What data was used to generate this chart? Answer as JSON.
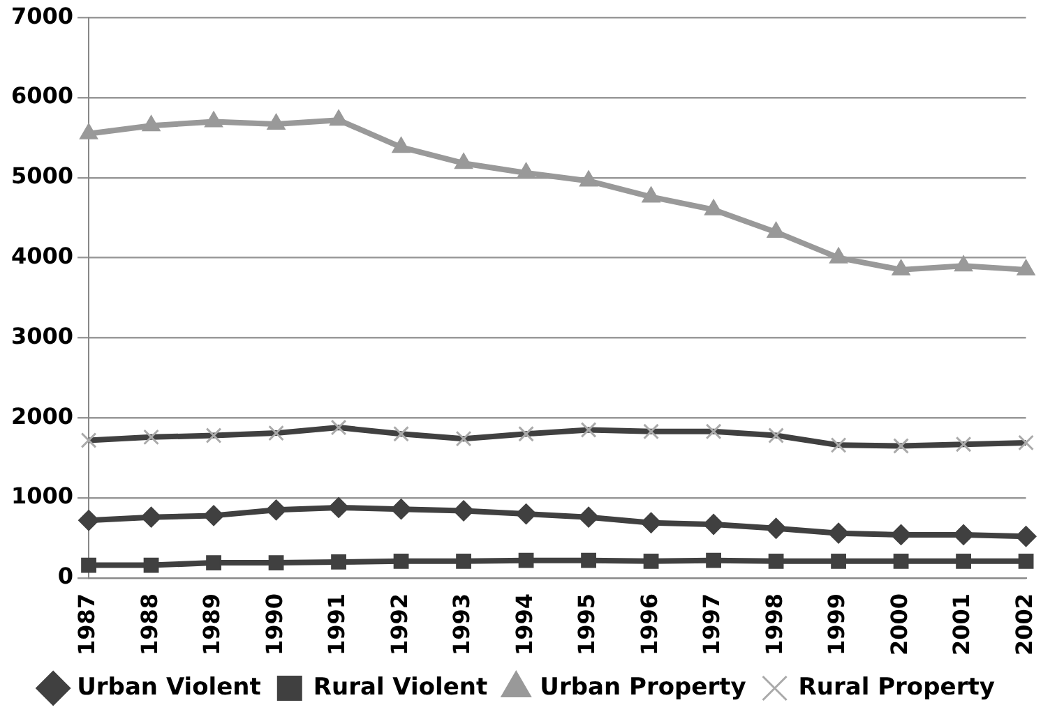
{
  "chart_data": {
    "type": "line",
    "categories": [
      "1987",
      "1988",
      "1989",
      "1990",
      "1991",
      "1992",
      "1993",
      "1994",
      "1995",
      "1996",
      "1997",
      "1998",
      "1999",
      "2000",
      "2001",
      "2002"
    ],
    "series": [
      {
        "name": "Urban Violent",
        "color": "#404040",
        "marker": "diamond",
        "values": [
          720,
          760,
          780,
          850,
          880,
          860,
          840,
          800,
          760,
          690,
          670,
          620,
          560,
          540,
          540,
          520
        ]
      },
      {
        "name": "Rural Violent",
        "color": "#404040",
        "marker": "square",
        "values": [
          160,
          160,
          190,
          190,
          200,
          210,
          210,
          220,
          220,
          210,
          220,
          210,
          210,
          210,
          210,
          210
        ]
      },
      {
        "name": "Urban Property",
        "color": "#999999",
        "marker": "triangle",
        "values": [
          5550,
          5650,
          5700,
          5670,
          5720,
          5380,
          5180,
          5060,
          4960,
          4760,
          4600,
          4320,
          4000,
          3850,
          3900,
          3850
        ]
      },
      {
        "name": "Rural Property",
        "color": "#404040",
        "marker": "cross",
        "values": [
          1720,
          1760,
          1780,
          1810,
          1880,
          1800,
          1740,
          1800,
          1850,
          1830,
          1830,
          1780,
          1660,
          1650,
          1670,
          1690
        ]
      }
    ],
    "ylim": [
      0,
      7000
    ],
    "yticks": [
      0,
      1000,
      2000,
      3000,
      4000,
      5000,
      6000,
      7000
    ],
    "grid": "y",
    "legend": "bottom"
  }
}
